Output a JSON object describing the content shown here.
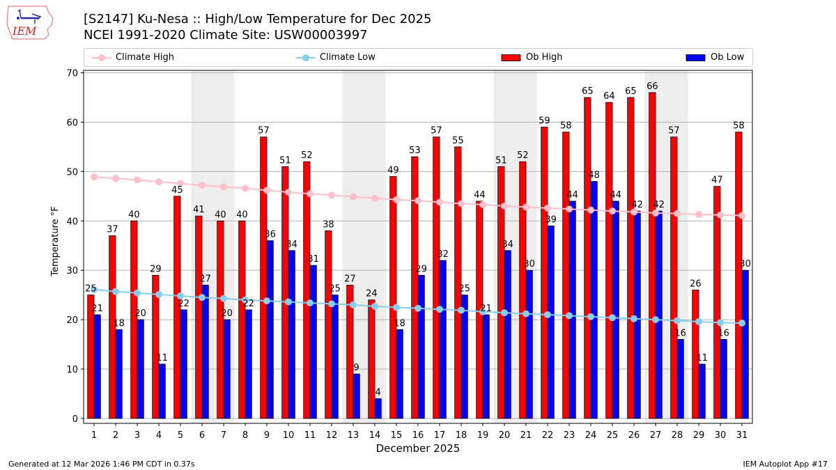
{
  "header": {
    "logo_text": "IEM",
    "title_line1": "[S2147] Ku-Nesa :: High/Low Temperature for Dec 2025",
    "title_line2": "NCEI 1991-2020 Climate Site: USW00003997"
  },
  "legend": {
    "items": [
      {
        "label": "Climate High",
        "kind": "line",
        "color": "#ffc0cb"
      },
      {
        "label": "Climate Low",
        "kind": "line",
        "color": "#87ceeb"
      },
      {
        "label": "Ob High",
        "kind": "bar",
        "color": "#ff0000"
      },
      {
        "label": "Ob Low",
        "kind": "bar",
        "color": "#0000ff"
      }
    ]
  },
  "colors": {
    "ob_high": "#ff0000",
    "ob_low": "#0000ff",
    "climate_high": "#ffc0cb",
    "climate_low": "#87ceeb",
    "weekend_shade": "#ededed",
    "grid": "#b0b0b0"
  },
  "chart_data": {
    "type": "bar",
    "title": "[S2147] Ku-Nesa :: High/Low Temperature for Dec 2025",
    "subtitle": "NCEI 1991-2020 Climate Site: USW00003997",
    "xlabel": "December 2025",
    "ylabel": "Temperature °F",
    "ylim": [
      -1,
      70.5
    ],
    "yticks": [
      0,
      10,
      20,
      30,
      40,
      50,
      60,
      70
    ],
    "grid": "y",
    "legend_position": "top (above plot)",
    "categories": [
      "1",
      "2",
      "3",
      "4",
      "5",
      "6",
      "7",
      "8",
      "9",
      "10",
      "11",
      "12",
      "13",
      "14",
      "15",
      "16",
      "17",
      "18",
      "19",
      "20",
      "21",
      "22",
      "23",
      "24",
      "25",
      "26",
      "27",
      "28",
      "29",
      "30",
      "31"
    ],
    "shaded_day_ranges": [
      [
        6,
        7
      ],
      [
        13,
        14
      ],
      [
        20,
        21
      ],
      [
        27,
        28
      ]
    ],
    "series": [
      {
        "name": "Ob High",
        "type": "bar",
        "values": [
          25,
          37,
          40,
          29,
          45,
          41,
          40,
          40,
          57,
          51,
          52,
          38,
          27,
          24,
          49,
          53,
          57,
          55,
          44,
          51,
          52,
          59,
          58,
          65,
          64,
          65,
          66,
          57,
          26,
          47,
          58
        ]
      },
      {
        "name": "Ob Low",
        "type": "bar",
        "values": [
          21,
          18,
          20,
          11,
          22,
          27,
          20,
          22,
          36,
          34,
          31,
          25,
          9,
          4,
          18,
          29,
          32,
          25,
          21,
          34,
          30,
          39,
          44,
          48,
          44,
          42,
          42,
          16,
          11,
          16,
          30
        ]
      },
      {
        "name": "Climate High",
        "type": "line",
        "values": [
          48.9,
          48.6,
          48.3,
          47.9,
          47.6,
          47.2,
          46.9,
          46.6,
          46.2,
          45.8,
          45.5,
          45.2,
          44.9,
          44.6,
          44.3,
          44.1,
          43.8,
          43.5,
          43.3,
          43.0,
          42.8,
          42.6,
          42.4,
          42.2,
          42.0,
          41.8,
          41.6,
          41.5,
          41.3,
          41.2,
          41.1
        ]
      },
      {
        "name": "Climate Low",
        "type": "line",
        "values": [
          26.1,
          25.7,
          25.4,
          25.1,
          24.8,
          24.5,
          24.3,
          24.0,
          23.8,
          23.6,
          23.4,
          23.2,
          23.0,
          22.7,
          22.5,
          22.3,
          22.1,
          21.9,
          21.6,
          21.4,
          21.2,
          21.0,
          20.8,
          20.6,
          20.4,
          20.2,
          20.0,
          19.8,
          19.6,
          19.4,
          19.3
        ]
      }
    ]
  },
  "footer": {
    "generated": "Generated at 12 Mar 2026 1:46 PM CDT in 0.37s",
    "app": "IEM Autoplot App #17"
  }
}
